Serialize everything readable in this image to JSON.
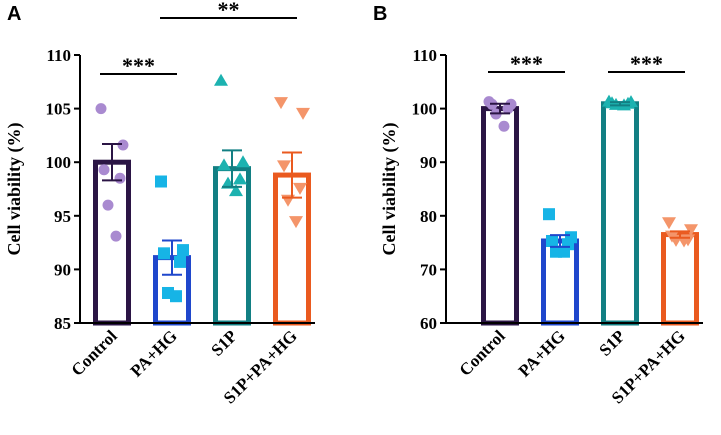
{
  "chart_data": [
    {
      "panel": "A",
      "type": "bar",
      "ylabel": "Cell viability (%)",
      "ylim": [
        85,
        110
      ],
      "yticks": [
        85,
        90,
        95,
        100,
        105,
        110
      ],
      "categories": [
        "Control",
        "PA+HG",
        "S1P",
        "S1P+PA+HG"
      ],
      "colors": [
        "#2b1545",
        "#1f47cc",
        "#127f83",
        "#ea5a1f"
      ],
      "marker_colors": [
        "#a98ad0",
        "#16b4e6",
        "#1cb2b0",
        "#f4956a"
      ],
      "markers": [
        "circle",
        "square",
        "triangle-up",
        "triangle-down"
      ],
      "means": [
        100.0,
        91.1,
        99.4,
        98.8
      ],
      "sem": [
        1.7,
        1.6,
        1.7,
        2.1
      ],
      "points": [
        [
          105.0,
          101.6,
          99.3,
          98.5,
          96.0,
          93.1
        ],
        [
          98.2,
          91.8,
          91.5,
          90.7,
          87.8,
          87.5
        ],
        [
          107.6,
          100.0,
          99.7,
          98.4,
          98.0,
          97.3
        ],
        [
          105.6,
          104.6,
          99.7,
          97.6,
          96.5,
          94.5
        ]
      ],
      "significance": [
        {
          "from": 0,
          "to": 1,
          "label": "***"
        },
        {
          "from": 1,
          "to": 3,
          "label": "**"
        }
      ]
    },
    {
      "panel": "B",
      "type": "bar",
      "ylabel": "Cell viability (%)",
      "ylim": [
        60,
        110
      ],
      "yticks": [
        60,
        70,
        80,
        90,
        100,
        110
      ],
      "categories": [
        "Control",
        "PA+HG",
        "S1P",
        "S1P+PA+HG"
      ],
      "colors": [
        "#2b1545",
        "#1f47cc",
        "#127f83",
        "#ea5a1f"
      ],
      "marker_colors": [
        "#a98ad0",
        "#16b4e6",
        "#1cb2b0",
        "#f4956a"
      ],
      "markers": [
        "circle",
        "square",
        "triangle-up",
        "triangle-down"
      ],
      "means": [
        100.0,
        75.3,
        100.9,
        76.5
      ],
      "sem": [
        0.9,
        1.1,
        0.3,
        0.6
      ],
      "points": [
        [
          101.3,
          100.8,
          100.8,
          100.0,
          99.0,
          96.7
        ],
        [
          80.3,
          76.0,
          75.3,
          74.7,
          73.3,
          73.3
        ],
        [
          101.3,
          101.2,
          101.0,
          100.9,
          100.7,
          100.6
        ],
        [
          78.8,
          77.5,
          76.3,
          75.6,
          75.5,
          75.4
        ]
      ],
      "significance": [
        {
          "from": 0,
          "to": 1,
          "label": "***"
        },
        {
          "from": 2,
          "to": 3,
          "label": "***"
        }
      ]
    }
  ]
}
